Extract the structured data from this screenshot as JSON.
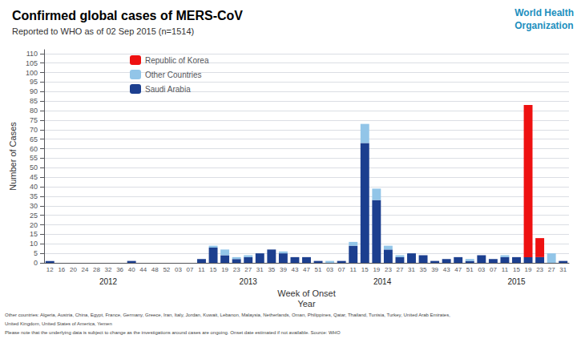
{
  "chart_data": {
    "type": "bar",
    "title": "Confirmed global cases of MERS-CoV",
    "subtitle": "Reported to WHO as of 02 Sep 2015 (n=1514)",
    "xlabel": [
      "Week of Onset",
      "Year"
    ],
    "ylabel": "Number of Cases",
    "categories": [
      "12",
      "16",
      "20",
      "24",
      "28",
      "32",
      "36",
      "40",
      "44",
      "48",
      "52",
      "03",
      "07",
      "11",
      "15",
      "19",
      "23",
      "27",
      "31",
      "35",
      "39",
      "43",
      "47",
      "51",
      "03",
      "07",
      "11",
      "15",
      "19",
      "23",
      "27",
      "31",
      "35",
      "39",
      "43",
      "47",
      "51",
      "03",
      "07",
      "11",
      "15",
      "19",
      "23",
      "27",
      "31"
    ],
    "series": [
      {
        "name": "Saudi Arabia",
        "color": "#1C3F8F",
        "values": [
          1,
          0,
          0,
          0,
          0,
          0,
          0,
          1,
          0,
          0,
          0,
          0,
          0,
          2,
          8,
          4,
          2,
          3,
          5,
          7,
          5,
          3,
          3,
          1,
          0,
          1,
          9,
          63,
          33,
          7,
          3,
          5,
          4,
          1,
          2,
          3,
          1,
          4,
          2,
          3,
          3,
          3,
          3,
          0,
          1
        ]
      },
      {
        "name": "Other Countries",
        "color": "#92C5E8",
        "values": [
          0,
          0,
          0,
          0,
          0,
          0,
          0,
          0,
          0,
          0,
          0,
          0,
          0,
          0,
          1,
          3,
          1,
          1,
          0,
          0,
          1,
          0,
          0,
          0,
          1,
          0,
          2,
          10,
          6,
          2,
          1,
          0,
          0,
          0,
          0,
          0,
          1,
          0,
          0,
          1,
          0,
          0,
          0,
          5,
          0
        ]
      },
      {
        "name": "Republic of Korea",
        "color": "#EE1111",
        "values": [
          0,
          0,
          0,
          0,
          0,
          0,
          0,
          0,
          0,
          0,
          0,
          0,
          0,
          0,
          0,
          0,
          0,
          0,
          0,
          0,
          0,
          0,
          0,
          0,
          0,
          0,
          0,
          0,
          0,
          0,
          0,
          0,
          0,
          0,
          0,
          0,
          0,
          0,
          0,
          0,
          0,
          80,
          10,
          0,
          0
        ]
      }
    ],
    "stacked": true,
    "ylim": [
      0,
      112
    ],
    "yticks": [
      0,
      5,
      10,
      15,
      20,
      25,
      30,
      35,
      40,
      45,
      50,
      55,
      60,
      65,
      70,
      75,
      80,
      85,
      90,
      95,
      100,
      105,
      110
    ],
    "grid": true,
    "legend": "upper left",
    "annotations": [
      {
        "text": "2012",
        "x": 5
      },
      {
        "text": "2013",
        "x": 17
      },
      {
        "text": "2014",
        "x": 28.5
      },
      {
        "text": "2015",
        "x": 40
      },
      {
        "text": "World Health\nOrganization",
        "color": "#1C8FBE"
      }
    ],
    "footnotes": [
      "Other countries: Algeria, Austria, China, Egypt, France, Germany, Greece, Iran, Italy, Jordan, Kuwait, Lebanon, Malaysia, Netherlands, Oman, Philippines, Qatar, Thailand, Tunisia, Turkey, United Arab Emirates,",
      "United Kingdom, United States of America, Yemen",
      "Please note that the underlying data is subject to change as the investigations around cases are ongoing. Onset date estimated if not available. Source: WHO"
    ]
  }
}
